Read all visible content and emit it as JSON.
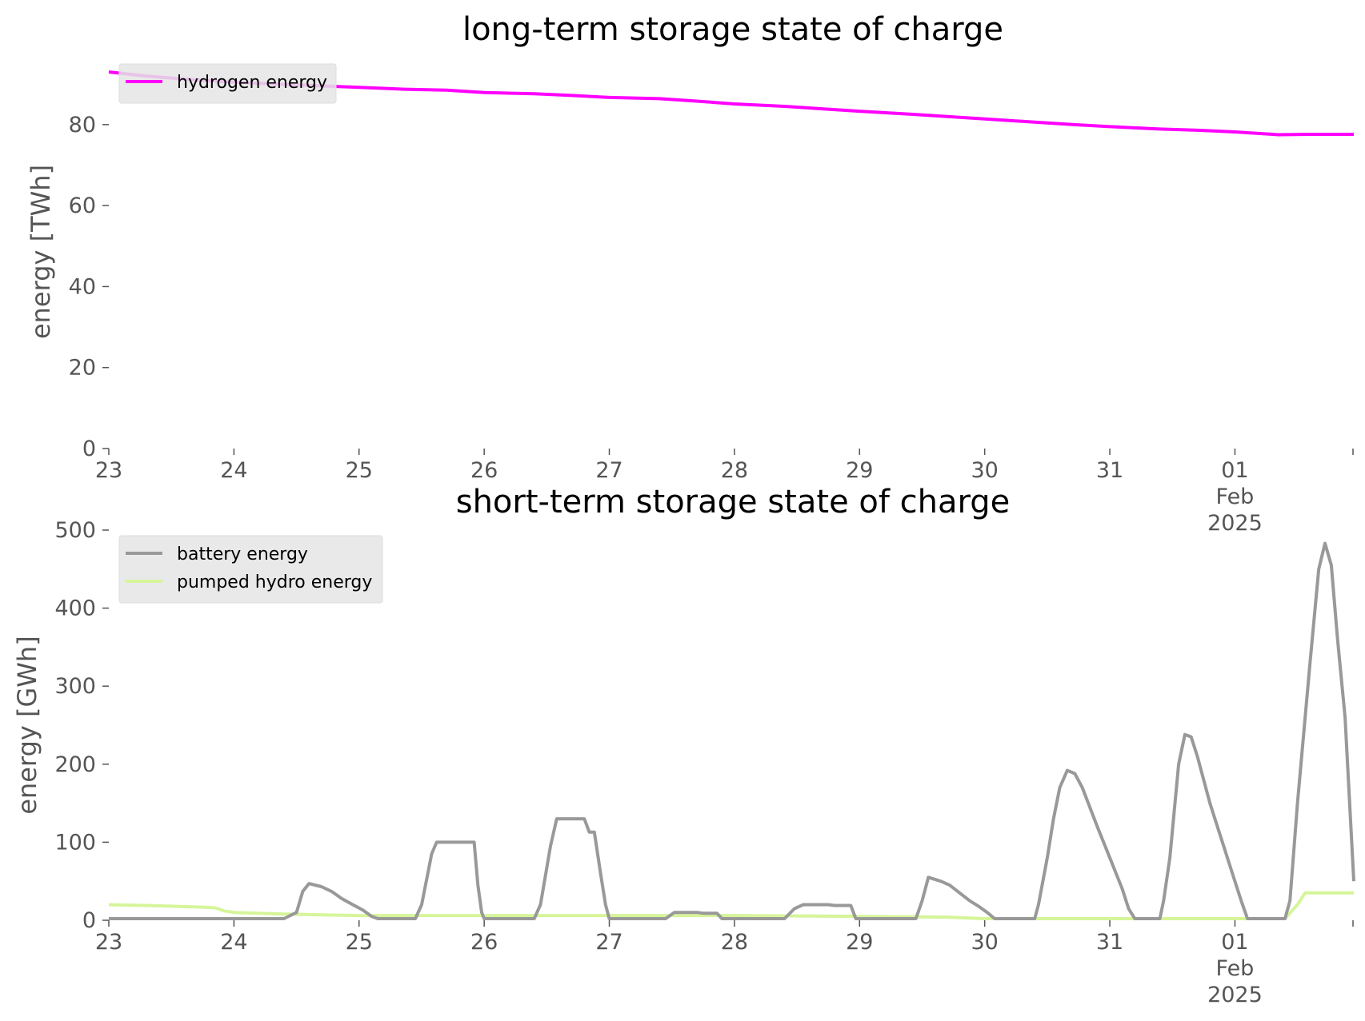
{
  "chart_data": [
    {
      "type": "line",
      "title": "long-term storage state of charge",
      "xlabel": "",
      "ylabel": "energy [TWh]",
      "ylim": [
        0,
        93
      ],
      "yticks": [
        "0",
        "20",
        "40",
        "60",
        "80"
      ],
      "xlim": [
        0,
        9.95
      ],
      "xticks": [
        {
          "x": 0,
          "lines": [
            "23"
          ]
        },
        {
          "x": 1,
          "lines": [
            "24"
          ]
        },
        {
          "x": 2,
          "lines": [
            "25"
          ]
        },
        {
          "x": 3,
          "lines": [
            "26"
          ]
        },
        {
          "x": 4,
          "lines": [
            "27"
          ]
        },
        {
          "x": 5,
          "lines": [
            "28"
          ]
        },
        {
          "x": 6,
          "lines": [
            "29"
          ]
        },
        {
          "x": 7,
          "lines": [
            "30"
          ]
        },
        {
          "x": 8,
          "lines": [
            "31"
          ]
        },
        {
          "x": 9,
          "lines": [
            "01",
            "Feb",
            "2025"
          ]
        }
      ],
      "grid": false,
      "legend_position": "top-left",
      "series": [
        {
          "name": "hydrogen energy",
          "color": "#ff00ff",
          "points": [
            [
              0,
              93.0
            ],
            [
              0.3,
              92.0
            ],
            [
              0.7,
              91.0
            ],
            [
              1.0,
              90.5
            ],
            [
              1.5,
              89.8
            ],
            [
              2.0,
              89.2
            ],
            [
              2.4,
              88.7
            ],
            [
              2.7,
              88.5
            ],
            [
              3.0,
              87.9
            ],
            [
              3.4,
              87.6
            ],
            [
              3.7,
              87.2
            ],
            [
              4.0,
              86.7
            ],
            [
              4.4,
              86.4
            ],
            [
              4.7,
              85.8
            ],
            [
              5.0,
              85.1
            ],
            [
              5.4,
              84.5
            ],
            [
              5.7,
              83.9
            ],
            [
              6.0,
              83.3
            ],
            [
              6.4,
              82.6
            ],
            [
              6.7,
              82.0
            ],
            [
              7.0,
              81.4
            ],
            [
              7.4,
              80.6
            ],
            [
              7.7,
              80.0
            ],
            [
              8.0,
              79.5
            ],
            [
              8.4,
              78.9
            ],
            [
              8.7,
              78.6
            ],
            [
              9.0,
              78.2
            ],
            [
              9.35,
              77.5
            ],
            [
              9.6,
              77.6
            ],
            [
              9.95,
              77.6
            ]
          ]
        }
      ]
    },
    {
      "type": "line",
      "title": "short-term storage state of charge",
      "xlabel": "",
      "ylabel": "energy [GWh]",
      "ylim": [
        0,
        500
      ],
      "yticks": [
        "0",
        "100",
        "200",
        "300",
        "400",
        "500"
      ],
      "xlim": [
        0,
        9.95
      ],
      "xticks": [
        {
          "x": 0,
          "lines": [
            "23"
          ]
        },
        {
          "x": 1,
          "lines": [
            "24"
          ]
        },
        {
          "x": 2,
          "lines": [
            "25"
          ]
        },
        {
          "x": 3,
          "lines": [
            "26"
          ]
        },
        {
          "x": 4,
          "lines": [
            "27"
          ]
        },
        {
          "x": 5,
          "lines": [
            "28"
          ]
        },
        {
          "x": 6,
          "lines": [
            "29"
          ]
        },
        {
          "x": 7,
          "lines": [
            "30"
          ]
        },
        {
          "x": 8,
          "lines": [
            "31"
          ]
        },
        {
          "x": 9,
          "lines": [
            "01",
            "Feb",
            "2025"
          ]
        }
      ],
      "grid": false,
      "legend_position": "top-left",
      "series": [
        {
          "name": "battery energy",
          "color": "#999999",
          "points": [
            [
              0,
              2
            ],
            [
              1.4,
              2
            ],
            [
              1.5,
              10
            ],
            [
              1.55,
              37
            ],
            [
              1.6,
              47
            ],
            [
              1.7,
              43
            ],
            [
              1.78,
              37
            ],
            [
              1.86,
              28
            ],
            [
              1.95,
              20
            ],
            [
              2.03,
              13
            ],
            [
              2.1,
              5
            ],
            [
              2.15,
              2
            ],
            [
              2.45,
              2
            ],
            [
              2.5,
              20
            ],
            [
              2.58,
              85
            ],
            [
              2.62,
              100
            ],
            [
              2.92,
              100
            ],
            [
              2.95,
              45
            ],
            [
              2.98,
              10
            ],
            [
              3.0,
              2
            ],
            [
              3.4,
              2
            ],
            [
              3.45,
              20
            ],
            [
              3.53,
              95
            ],
            [
              3.58,
              130
            ],
            [
              3.8,
              130
            ],
            [
              3.84,
              113
            ],
            [
              3.88,
              113
            ],
            [
              3.93,
              60
            ],
            [
              3.97,
              20
            ],
            [
              4.0,
              2
            ],
            [
              4.45,
              2
            ],
            [
              4.52,
              10
            ],
            [
              4.7,
              10
            ],
            [
              4.75,
              9
            ],
            [
              4.86,
              9
            ],
            [
              4.9,
              2
            ],
            [
              5.4,
              2
            ],
            [
              5.48,
              15
            ],
            [
              5.55,
              20
            ],
            [
              5.75,
              20
            ],
            [
              5.8,
              19
            ],
            [
              5.93,
              19
            ],
            [
              5.97,
              2
            ],
            [
              6.45,
              2
            ],
            [
              6.5,
              25
            ],
            [
              6.55,
              55
            ],
            [
              6.65,
              50
            ],
            [
              6.72,
              45
            ],
            [
              6.8,
              35
            ],
            [
              6.88,
              25
            ],
            [
              6.95,
              18
            ],
            [
              7.02,
              10
            ],
            [
              7.08,
              2
            ],
            [
              7.4,
              2
            ],
            [
              7.43,
              20
            ],
            [
              7.5,
              80
            ],
            [
              7.55,
              130
            ],
            [
              7.6,
              170
            ],
            [
              7.66,
              192
            ],
            [
              7.72,
              188
            ],
            [
              7.78,
              170
            ],
            [
              7.9,
              120
            ],
            [
              8.0,
              80
            ],
            [
              8.1,
              40
            ],
            [
              8.15,
              15
            ],
            [
              8.2,
              2
            ],
            [
              8.4,
              2
            ],
            [
              8.43,
              25
            ],
            [
              8.48,
              80
            ],
            [
              8.55,
              200
            ],
            [
              8.6,
              238
            ],
            [
              8.65,
              235
            ],
            [
              8.7,
              210
            ],
            [
              8.8,
              150
            ],
            [
              8.9,
              100
            ],
            [
              9.0,
              50
            ],
            [
              9.05,
              25
            ],
            [
              9.1,
              2
            ],
            [
              9.4,
              2
            ],
            [
              9.44,
              25
            ],
            [
              9.5,
              150
            ],
            [
              9.6,
              330
            ],
            [
              9.67,
              450
            ],
            [
              9.72,
              483
            ],
            [
              9.77,
              455
            ],
            [
              9.82,
              360
            ],
            [
              9.88,
              260
            ],
            [
              9.95,
              50
            ]
          ]
        },
        {
          "name": "pumped hydro energy",
          "color": "#d6f59a",
          "points": [
            [
              0,
              20
            ],
            [
              0.3,
              19
            ],
            [
              0.7,
              17
            ],
            [
              0.85,
              16
            ],
            [
              0.92,
              12
            ],
            [
              1.0,
              10
            ],
            [
              1.4,
              8
            ],
            [
              1.7,
              7
            ],
            [
              2.0,
              6
            ],
            [
              3.0,
              6
            ],
            [
              4.0,
              6
            ],
            [
              5.0,
              6
            ],
            [
              6.0,
              5
            ],
            [
              6.7,
              4
            ],
            [
              7.0,
              2
            ],
            [
              9.4,
              2
            ],
            [
              9.5,
              20
            ],
            [
              9.56,
              35
            ],
            [
              9.95,
              35
            ]
          ]
        }
      ]
    }
  ]
}
